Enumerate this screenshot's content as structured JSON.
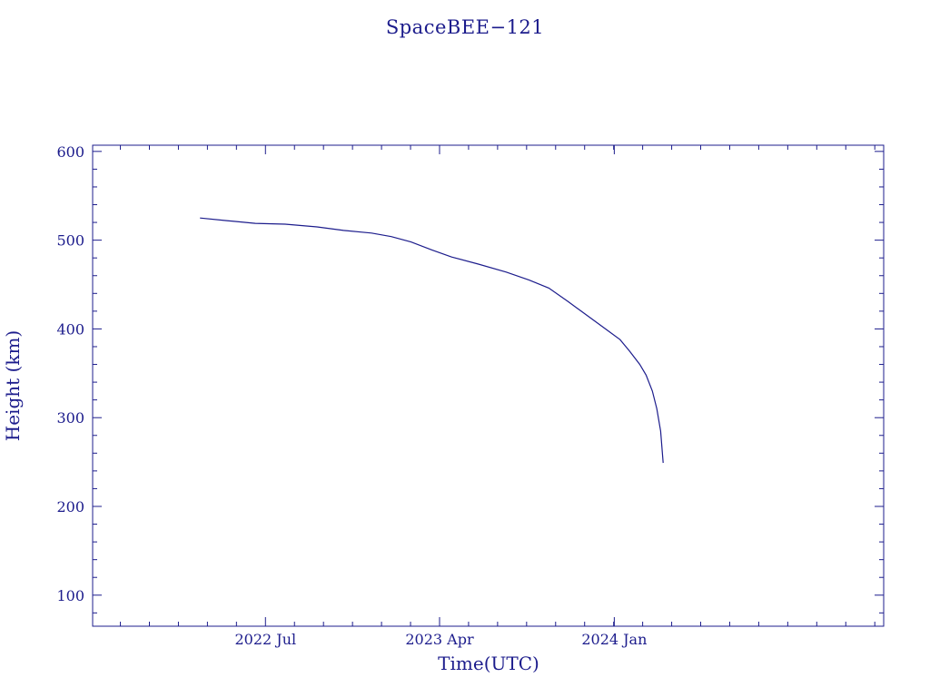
{
  "chart_data": {
    "type": "line",
    "title": "SpaceBEE−121",
    "xlabel": "Time(UTC)",
    "ylabel": "Height (km)",
    "x_axis_type": "date",
    "xlim": [
      "2021-10-02",
      "2025-02-28"
    ],
    "ylim": [
      65,
      607
    ],
    "x_ticks": [
      {
        "label": "2022 Jul",
        "date": "2022-07-01"
      },
      {
        "label": "2023 Apr",
        "date": "2023-04-01"
      },
      {
        "label": "2024 Jan",
        "date": "2024-01-01"
      }
    ],
    "y_ticks": [
      {
        "label": "100",
        "value": 100
      },
      {
        "label": "200",
        "value": 200
      },
      {
        "label": "300",
        "value": 300
      },
      {
        "label": "400",
        "value": 400
      },
      {
        "label": "500",
        "value": 500
      },
      {
        "label": "600",
        "value": 600
      }
    ],
    "grid": false,
    "color": "#1c1c8c",
    "series": [
      {
        "x": [
          "2022-03-20",
          "2022-05-01",
          "2022-06-15",
          "2022-08-01",
          "2022-09-20",
          "2022-11-01",
          "2022-12-15",
          "2023-01-15",
          "2023-02-15",
          "2023-03-20",
          "2023-04-20",
          "2023-06-01",
          "2023-07-15",
          "2023-08-20",
          "2023-09-20",
          "2023-10-20",
          "2023-11-10",
          "2023-12-01",
          "2023-12-20",
          "2024-01-10",
          "2024-01-25",
          "2024-02-10",
          "2024-02-20",
          "2024-03-01",
          "2024-03-08",
          "2024-03-14",
          "2024-03-18"
        ],
        "y": [
          525,
          522,
          519,
          518,
          515,
          511,
          508,
          504,
          498,
          489,
          481,
          473,
          464,
          455,
          446,
          431,
          420,
          409,
          399,
          388,
          375,
          360,
          348,
          330,
          310,
          285,
          249
        ]
      }
    ]
  }
}
